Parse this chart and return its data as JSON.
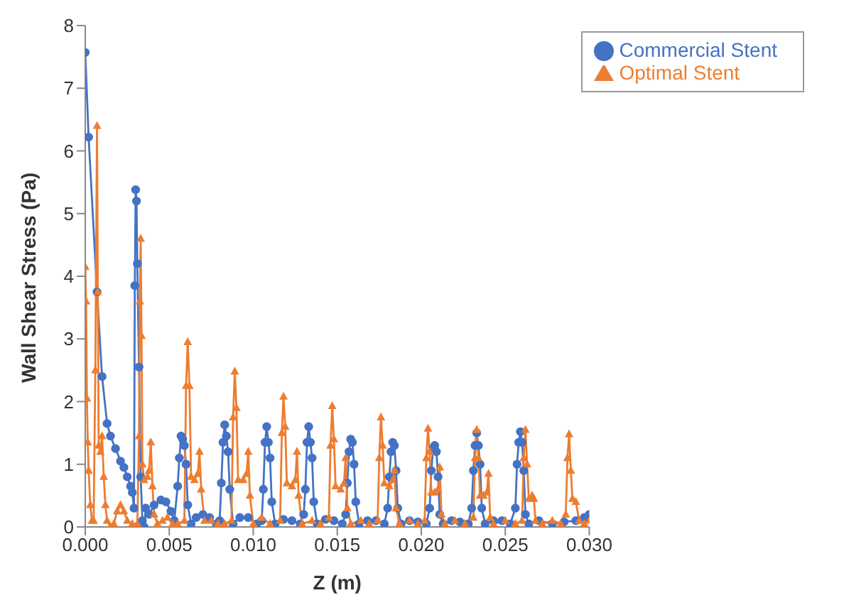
{
  "chart_data": {
    "type": "line",
    "xlabel": "Z (m)",
    "ylabel": "Wall Shear Stress (Pa)",
    "xlim": [
      0,
      0.03
    ],
    "xticks": [
      {
        "value": 0,
        "label": "0.000"
      },
      {
        "value": 0.005,
        "label": "0.005"
      },
      {
        "value": 0.01,
        "label": "0.010"
      },
      {
        "value": 0.015,
        "label": "0.015"
      },
      {
        "value": 0.02,
        "label": "0.020"
      },
      {
        "value": 0.025,
        "label": "0.025"
      },
      {
        "value": 0.03,
        "label": "0.030"
      }
    ],
    "ylim": [
      0,
      8
    ],
    "yticks": [
      0,
      1,
      2,
      3,
      4,
      5,
      6,
      7,
      8
    ],
    "grid": false,
    "legend": "top right",
    "line_style": "solid",
    "series": [
      {
        "name": "Commercial Stent",
        "color": "#4472c4",
        "marker": "circle",
        "x": [
          0,
          0.0002,
          0.0007,
          0.001,
          0.0013,
          0.0015,
          0.0018,
          0.0021,
          0.0023,
          0.0025,
          0.0027,
          0.0028,
          0.0029,
          0.00295,
          0.003,
          0.00305,
          0.0031,
          0.0032,
          0.0033,
          0.0034,
          0.0035,
          0.0036,
          0.0038,
          0.0041,
          0.0045,
          0.0048,
          0.0051,
          0.0053,
          0.0055,
          0.0056,
          0.0057,
          0.0058,
          0.0059,
          0.006,
          0.0061,
          0.0063,
          0.0066,
          0.007,
          0.0074,
          0.0078,
          0.008,
          0.0081,
          0.0082,
          0.0083,
          0.0084,
          0.0085,
          0.0086,
          0.0088,
          0.0092,
          0.0097,
          0.0102,
          0.0105,
          0.0106,
          0.0107,
          0.0108,
          0.0109,
          0.011,
          0.0111,
          0.0113,
          0.0118,
          0.0123,
          0.0128,
          0.013,
          0.0131,
          0.0132,
          0.0133,
          0.0134,
          0.0135,
          0.0136,
          0.0138,
          0.0143,
          0.0148,
          0.0153,
          0.0155,
          0.0156,
          0.0157,
          0.0158,
          0.0159,
          0.016,
          0.0161,
          0.0163,
          0.0168,
          0.0173,
          0.0178,
          0.018,
          0.0181,
          0.0182,
          0.0183,
          0.0184,
          0.0185,
          0.0186,
          0.0188,
          0.0193,
          0.0198,
          0.0203,
          0.0205,
          0.0206,
          0.0207,
          0.0208,
          0.0209,
          0.021,
          0.0211,
          0.0213,
          0.0218,
          0.0223,
          0.0228,
          0.023,
          0.0231,
          0.0232,
          0.0233,
          0.0234,
          0.0235,
          0.0236,
          0.0238,
          0.0243,
          0.0248,
          0.0253,
          0.0256,
          0.0257,
          0.0258,
          0.0259,
          0.026,
          0.0261,
          0.0262,
          0.0264,
          0.027,
          0.0278,
          0.0285,
          0.0292,
          0.0297,
          0.03
        ],
        "values": [
          7.57,
          6.22,
          3.75,
          2.4,
          1.65,
          1.45,
          1.25,
          1.05,
          0.95,
          0.8,
          0.65,
          0.55,
          0.3,
          3.85,
          5.38,
          5.2,
          4.2,
          2.55,
          0.8,
          0.1,
          0,
          0.3,
          0.2,
          0.35,
          0.43,
          0.4,
          0.25,
          0.1,
          0.65,
          1.1,
          1.45,
          1.4,
          1.3,
          1,
          0.35,
          0.05,
          0.15,
          0.2,
          0.15,
          0.05,
          0.1,
          0.7,
          1.35,
          1.63,
          1.45,
          1.2,
          0.6,
          0.05,
          0.15,
          0.15,
          0.05,
          0.1,
          0.6,
          1.35,
          1.6,
          1.35,
          1.1,
          0.4,
          0.05,
          0.12,
          0.1,
          0.05,
          0.2,
          0.6,
          1.35,
          1.6,
          1.35,
          1.1,
          0.4,
          0.05,
          0.12,
          0.1,
          0.05,
          0.2,
          0.7,
          1.2,
          1.4,
          1.35,
          1,
          0.4,
          0.05,
          0.1,
          0.1,
          0.05,
          0.3,
          0.8,
          1.2,
          1.35,
          1.3,
          0.9,
          0.3,
          0.05,
          0.1,
          0.08,
          0.05,
          0.3,
          0.9,
          1.25,
          1.3,
          1.2,
          0.8,
          0.2,
          0.05,
          0.1,
          0.08,
          0.05,
          0.3,
          0.9,
          1.3,
          1.5,
          1.3,
          1,
          0.3,
          0.05,
          0.1,
          0.1,
          0.05,
          0.3,
          1,
          1.35,
          1.52,
          1.35,
          0.9,
          0.2,
          0.05,
          0.1,
          0.05,
          0.08,
          0.1,
          0.15,
          0.2
        ]
      },
      {
        "name": "Optimal Stent",
        "color": "#ed7d31",
        "marker": "triangle",
        "x": [
          0,
          5e-05,
          0.0001,
          0.00015,
          0.0002,
          0.0003,
          0.0004,
          0.0005,
          0.0006,
          0.0007,
          0.00075,
          0.0008,
          0.0009,
          0.001,
          0.0011,
          0.0012,
          0.0013,
          0.0015,
          0.0017,
          0.0019,
          0.0021,
          0.0023,
          0.0025,
          0.0028,
          0.0031,
          0.0032,
          0.00325,
          0.0033,
          0.00335,
          0.0034,
          0.0035,
          0.0037,
          0.0038,
          0.0039,
          0.004,
          0.0041,
          0.0043,
          0.0046,
          0.0049,
          0.0052,
          0.0055,
          0.0059,
          0.006,
          0.0061,
          0.0062,
          0.0063,
          0.0065,
          0.0067,
          0.0068,
          0.0069,
          0.0071,
          0.0075,
          0.0079,
          0.0083,
          0.0087,
          0.0088,
          0.0089,
          0.009,
          0.0091,
          0.0094,
          0.0096,
          0.0097,
          0.0098,
          0.01,
          0.0105,
          0.011,
          0.0116,
          0.0117,
          0.0118,
          0.0119,
          0.012,
          0.0123,
          0.0125,
          0.0126,
          0.0127,
          0.0129,
          0.0135,
          0.014,
          0.0145,
          0.0146,
          0.0147,
          0.0148,
          0.0149,
          0.0152,
          0.0154,
          0.0155,
          0.0156,
          0.0158,
          0.0164,
          0.0169,
          0.0174,
          0.0175,
          0.0176,
          0.0177,
          0.0178,
          0.0181,
          0.0183,
          0.0184,
          0.0185,
          0.0187,
          0.0193,
          0.0198,
          0.0202,
          0.0203,
          0.0204,
          0.0205,
          0.0206,
          0.0208,
          0.021,
          0.0211,
          0.0212,
          0.0214,
          0.022,
          0.0226,
          0.0231,
          0.0232,
          0.0233,
          0.0234,
          0.0235,
          0.0237,
          0.0239,
          0.024,
          0.0241,
          0.0243,
          0.025,
          0.0256,
          0.026,
          0.0261,
          0.0262,
          0.0263,
          0.0264,
          0.0266,
          0.0267,
          0.0268,
          0.0272,
          0.0278,
          0.0283,
          0.0286,
          0.0287,
          0.0288,
          0.0289,
          0.029,
          0.0292,
          0.0294,
          0.0297,
          0.03
        ],
        "values": [
          4.15,
          3.6,
          2.05,
          1.35,
          0.9,
          0.35,
          0.1,
          0.1,
          2.5,
          6.4,
          3.75,
          1.3,
          1.2,
          1.45,
          0.8,
          0.35,
          0.1,
          0,
          0.05,
          0.25,
          0.35,
          0.25,
          0.1,
          0.05,
          0.05,
          1.45,
          3.6,
          4.6,
          3.05,
          1,
          0.75,
          0.8,
          0.9,
          1.35,
          0.65,
          0.2,
          0.05,
          0.1,
          0.15,
          0.05,
          0.05,
          0.1,
          2.25,
          2.95,
          2.25,
          0.8,
          0.75,
          0.85,
          1.2,
          0.6,
          0.1,
          0.1,
          0.05,
          0.05,
          0.1,
          1.75,
          2.48,
          1.9,
          0.75,
          0.75,
          0.85,
          1.2,
          0.5,
          0.05,
          0.15,
          0.05,
          0.1,
          1.5,
          2.08,
          1.6,
          0.7,
          0.65,
          0.75,
          1.2,
          0.5,
          0.05,
          0.1,
          0.05,
          0.15,
          1.3,
          1.93,
          1.4,
          0.65,
          0.6,
          0.7,
          1.1,
          0.3,
          0.05,
          0.1,
          0.05,
          0.1,
          1.1,
          1.75,
          1.3,
          0.7,
          0.65,
          0.75,
          0.9,
          0.3,
          0.05,
          0.1,
          0.05,
          0.1,
          1.1,
          1.57,
          1.2,
          0.55,
          0.55,
          0.6,
          0.95,
          0.2,
          0.05,
          0.1,
          0.05,
          0.15,
          1.1,
          1.55,
          1.1,
          0.5,
          0.5,
          0.55,
          0.85,
          0.15,
          0.05,
          0.1,
          0.05,
          0.1,
          1.1,
          1.55,
          1,
          0.45,
          0.5,
          0.45,
          0.1,
          0.05,
          0.1,
          0.05,
          0.2,
          1.1,
          1.48,
          0.9,
          0.45,
          0.4,
          0.1,
          0.05,
          0.1
        ]
      }
    ]
  }
}
